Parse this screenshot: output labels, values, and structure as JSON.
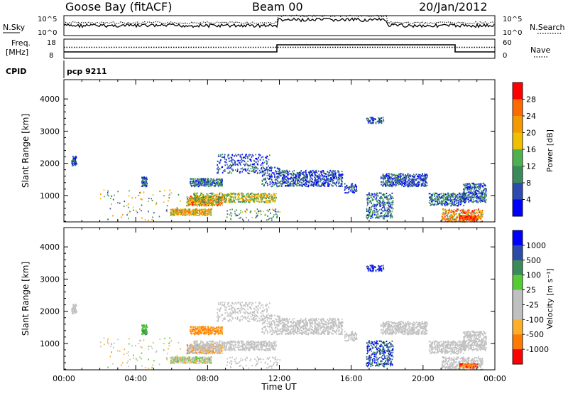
{
  "header": {
    "station": "Goose Bay (fitACF)",
    "beam": "Beam 00",
    "date": "20/Jan/2012"
  },
  "noise_panel": {
    "left_label": "N.Sky",
    "right_label": "N.Search",
    "left_ticks": [
      "10^5",
      "10^0"
    ],
    "right_ticks": [
      "10^5",
      "10^0"
    ]
  },
  "freq_panel": {
    "left_label_1": "Freq.",
    "left_label_2": "[MHz]",
    "right_label": "Nave",
    "left_ticks": [
      "18",
      "8"
    ],
    "right_ticks": [
      "60",
      "0"
    ]
  },
  "cpid_panel": {
    "label": "CPID",
    "value": "pcp 9211"
  },
  "colors": {
    "power_scale": [
      "#0000ff",
      "#2e4bb0",
      "#3a8a5a",
      "#4fb04f",
      "#f0c000",
      "#f39a00",
      "#ff6a00",
      "#ff0000"
    ],
    "velocity_scale": [
      "#ff0000",
      "#ff7a00",
      "#ffae2a",
      "#c0c0c0",
      "#c0c0c0",
      "#55cc33",
      "#3a8a5a",
      "#2a4ba8",
      "#0000ff"
    ]
  },
  "chart_data": [
    {
      "type": "heatmap",
      "name": "power",
      "ylabel": "Slant Range [km]",
      "yticks": [
        "4000",
        "3000",
        "2000",
        "1000"
      ],
      "ylim": [
        180,
        4600
      ],
      "xlim": [
        0,
        24
      ],
      "colorbar_label": "Power [dB]",
      "colorbar_ticks": [
        "28",
        "24",
        "20",
        "16",
        "12",
        "8",
        "4"
      ]
    },
    {
      "type": "heatmap",
      "name": "velocity",
      "ylabel": "Slant Range [km]",
      "yticks": [
        "4000",
        "3000",
        "2000",
        "1000"
      ],
      "ylim": [
        180,
        4600
      ],
      "xlim": [
        0,
        24
      ],
      "colorbar_label": "Velocity [m s⁻¹]",
      "colorbar_ticks": [
        "1000",
        "500",
        "100",
        "25",
        "-25",
        "-100",
        "-500",
        "-1000"
      ],
      "xlabel": "Time UT",
      "xticks": [
        "00:00",
        "04:00",
        "08:00",
        "12:00",
        "16:00",
        "20:00",
        "00:00"
      ]
    }
  ]
}
